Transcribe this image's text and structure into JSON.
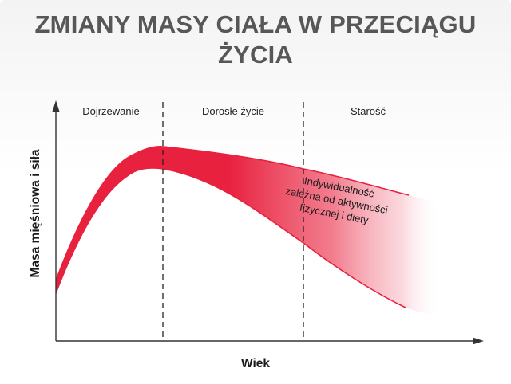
{
  "title_lines": [
    "ZMIANY MASY CIAŁA W PRZECIĄGU",
    "ŻYCIA"
  ],
  "phases": [
    "Dojrzewanie",
    "Dorosłe życie",
    "Starość"
  ],
  "x_axis_label": "Wiek",
  "y_axis_label": "Masa mięśniowa i siła",
  "annotation_lines": [
    "Indywidualność",
    "zależna od aktywności",
    "fizycznej i diety"
  ],
  "colors": {
    "title": "#575757",
    "band": "#e8213f",
    "band_fade": "#ffffff",
    "axis": "#333333"
  }
}
